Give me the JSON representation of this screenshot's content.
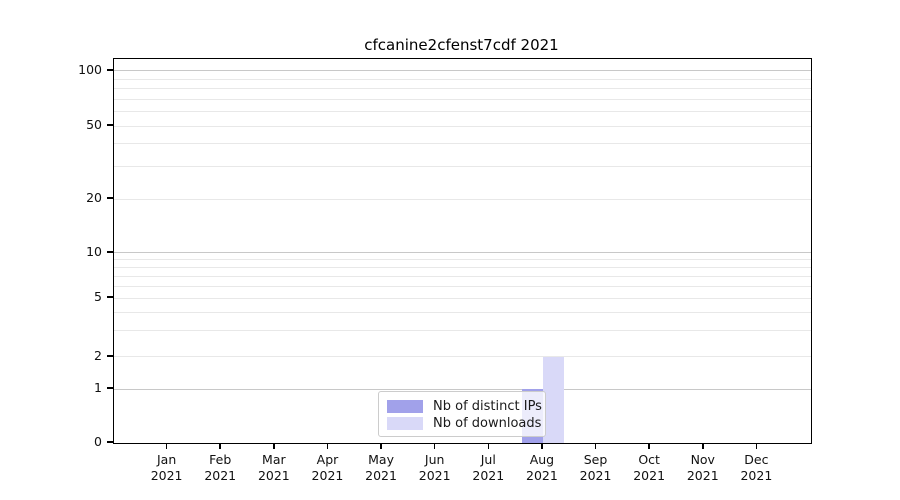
{
  "title": "cfcanine2cfenst7cdf 2021",
  "chart_data": {
    "type": "bar",
    "title": "cfcanine2cfenst7cdf 2021",
    "categories": [
      "Jan 2021",
      "Feb 2021",
      "Mar 2021",
      "Apr 2021",
      "May 2021",
      "Jun 2021",
      "Jul 2021",
      "Aug 2021",
      "Sep 2021",
      "Oct 2021",
      "Nov 2021",
      "Dec 2021"
    ],
    "series": [
      {
        "name": "Nb of distinct IPs",
        "color": "#a1a1ea",
        "values": [
          0,
          0,
          0,
          0,
          0,
          0,
          0,
          1,
          0,
          0,
          0,
          0
        ]
      },
      {
        "name": "Nb of downloads",
        "color": "#d9d9f8",
        "values": [
          0,
          0,
          0,
          0,
          0,
          0,
          0,
          2,
          0,
          0,
          0,
          0
        ]
      }
    ],
    "xlabel": "",
    "ylabel": "",
    "y_ticks": [
      100,
      50,
      20,
      10,
      5,
      2,
      1,
      0
    ],
    "ylim": [
      0,
      116
    ],
    "yscale": "log-above-1-linear-below",
    "grid": "horizontal-major-and-minor",
    "legend_position": "lower-center"
  },
  "colors": {
    "bar_distinct_ips": "#a1a1ea",
    "bar_downloads": "#d9d9f8",
    "grid_decade": "#c8c8c8",
    "grid_minor": "#e8e8e8",
    "axis": "#000000",
    "legend_border": "#cccccc"
  }
}
